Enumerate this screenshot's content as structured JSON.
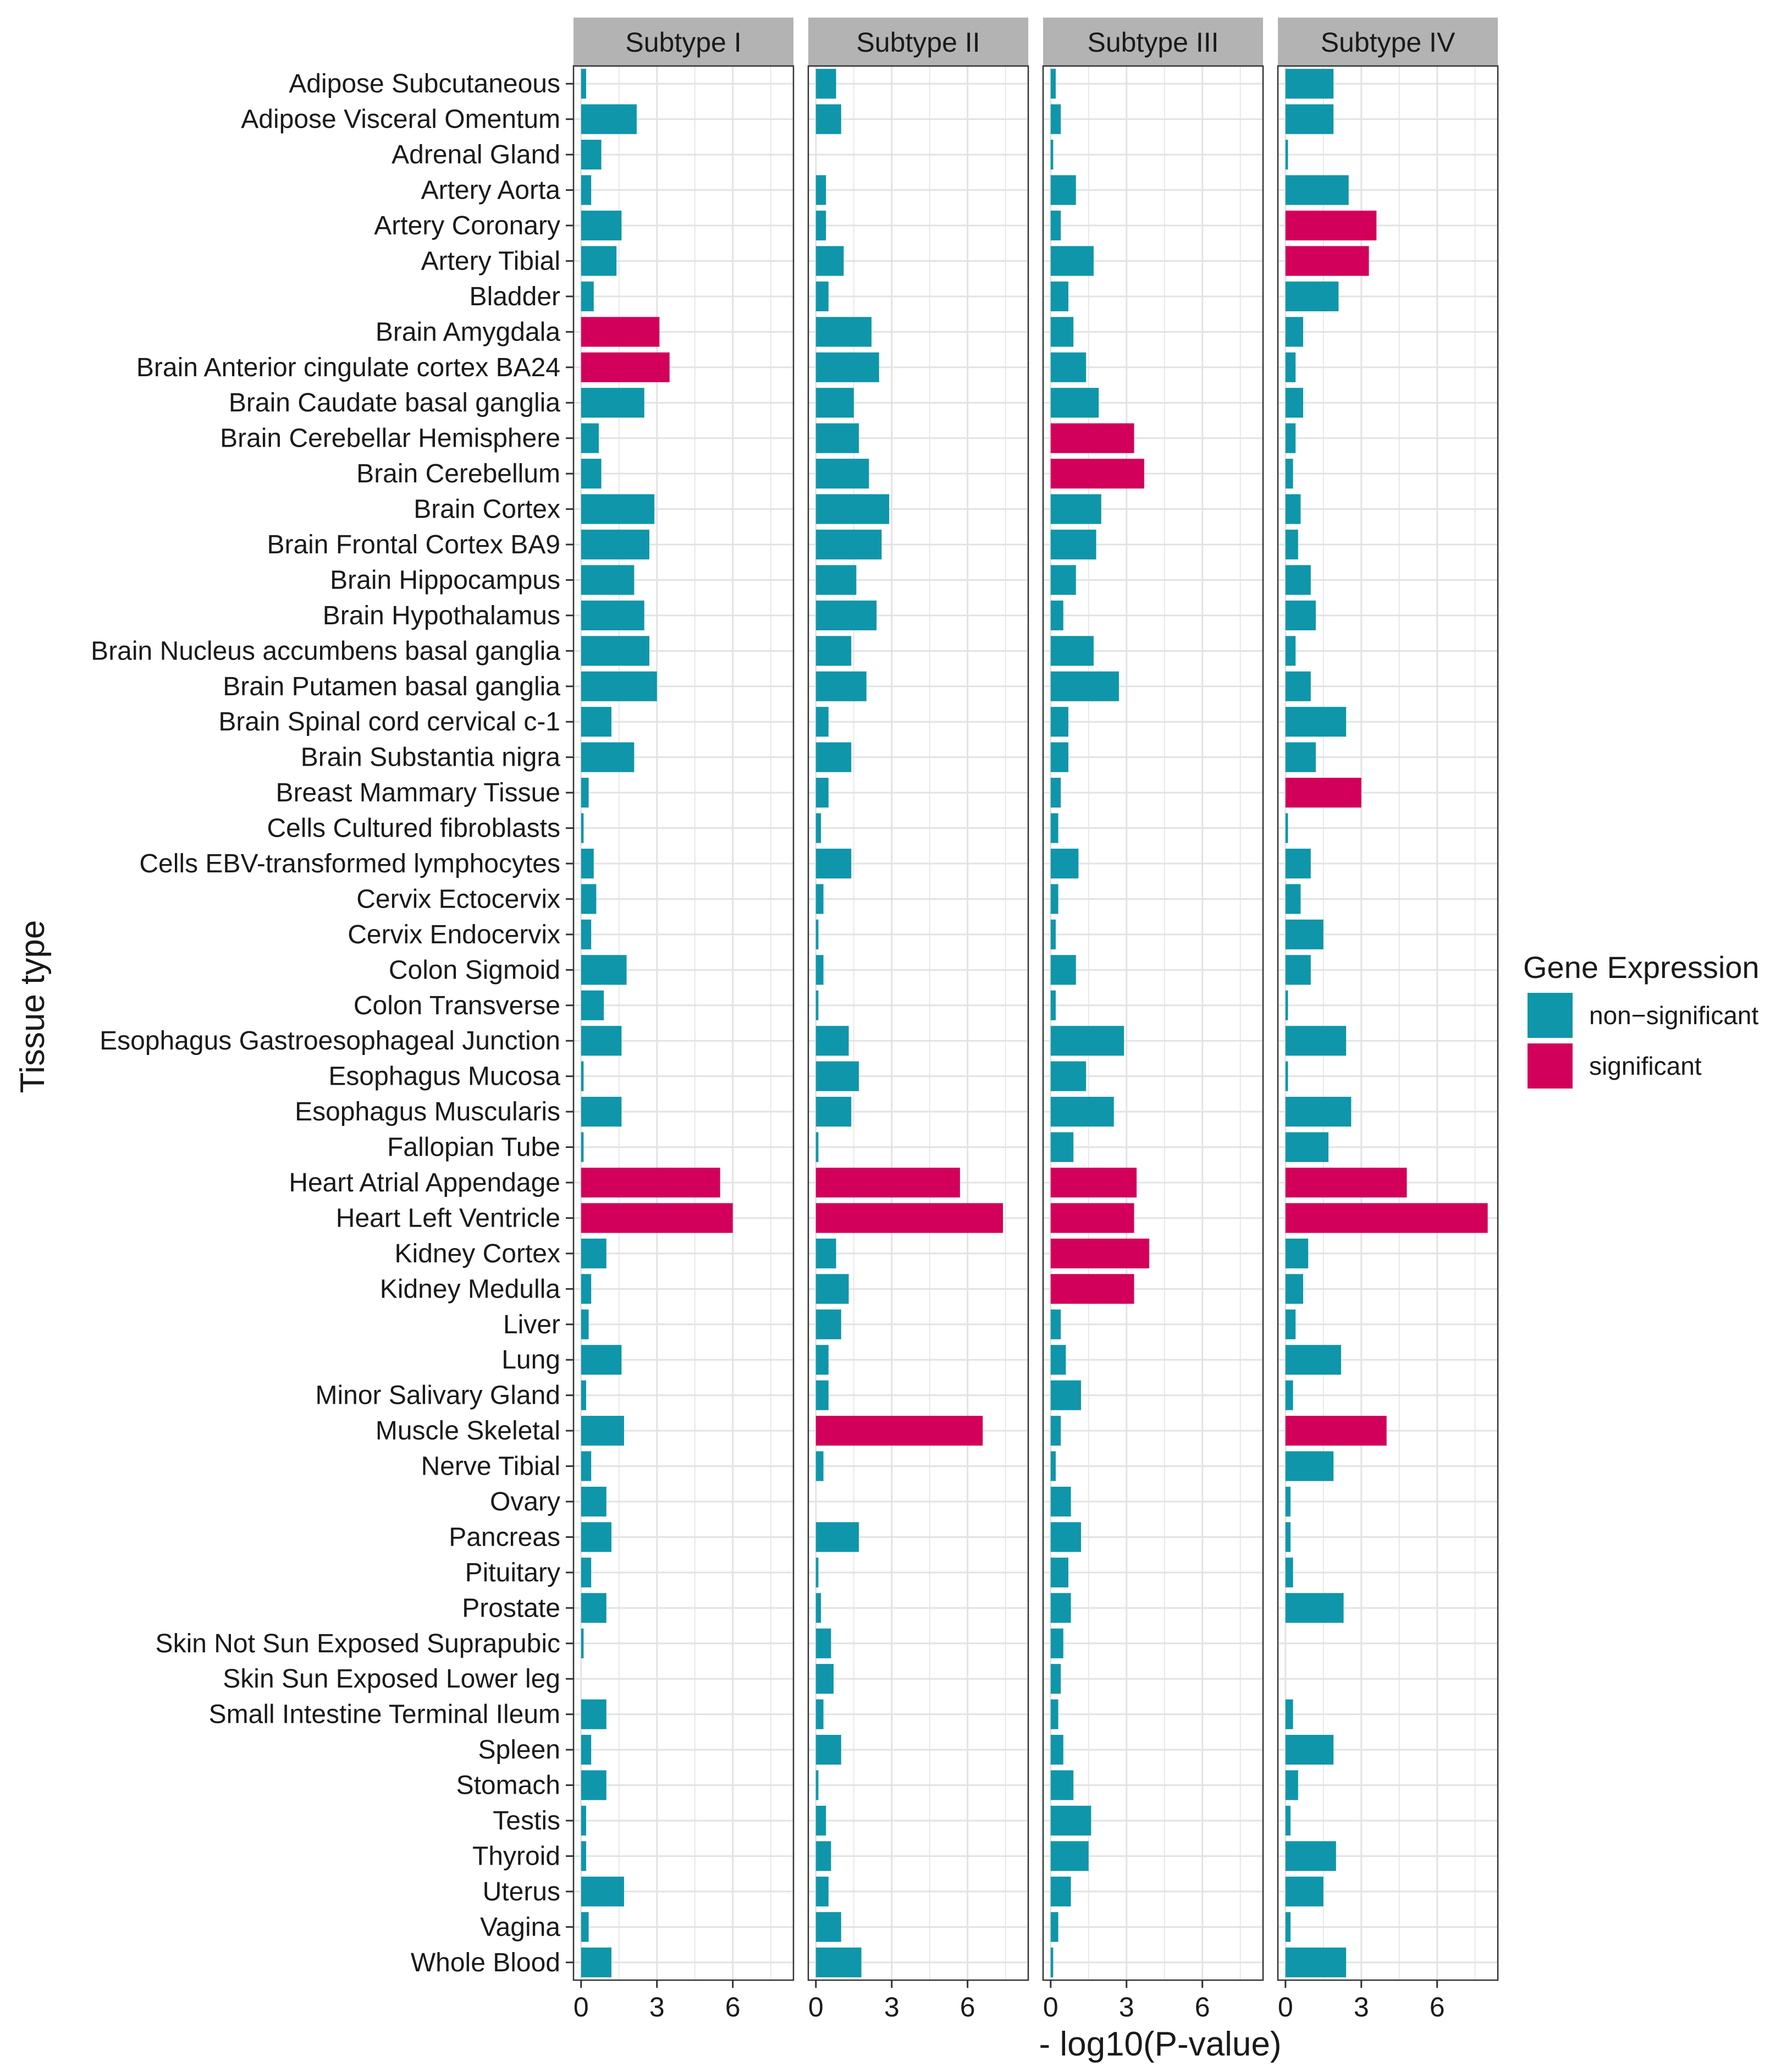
{
  "chart_data": {
    "type": "bar",
    "orientation": "horizontal",
    "xlabel": "- log10(P-value)",
    "ylabel": "Tissue type",
    "xlim": [
      -0.3,
      8.4
    ],
    "xticks": [
      0,
      3,
      6
    ],
    "grid": true,
    "legend": {
      "title": "Gene Expression",
      "position": "right",
      "entries": [
        {
          "key": "non-significant",
          "label": "non−significant",
          "color": "#0f96aa"
        },
        {
          "key": "significant",
          "label": "significant",
          "color": "#d2005a"
        }
      ]
    },
    "categories": [
      "Adipose Subcutaneous",
      "Adipose Visceral Omentum",
      "Adrenal Gland",
      "Artery Aorta",
      "Artery Coronary",
      "Artery Tibial",
      "Bladder",
      "Brain Amygdala",
      "Brain Anterior cingulate cortex BA24",
      "Brain Caudate basal ganglia",
      "Brain Cerebellar Hemisphere",
      "Brain Cerebellum",
      "Brain Cortex",
      "Brain Frontal Cortex BA9",
      "Brain Hippocampus",
      "Brain Hypothalamus",
      "Brain Nucleus accumbens basal ganglia",
      "Brain Putamen basal ganglia",
      "Brain Spinal cord cervical c-1",
      "Brain Substantia nigra",
      "Breast Mammary Tissue",
      "Cells Cultured fibroblasts",
      "Cells EBV-transformed lymphocytes",
      "Cervix Ectocervix",
      "Cervix Endocervix",
      "Colon Sigmoid",
      "Colon Transverse",
      "Esophagus Gastroesophageal Junction",
      "Esophagus Mucosa",
      "Esophagus Muscularis",
      "Fallopian Tube",
      "Heart Atrial Appendage",
      "Heart Left Ventricle",
      "Kidney Cortex",
      "Kidney Medulla",
      "Liver",
      "Lung",
      "Minor Salivary Gland",
      "Muscle Skeletal",
      "Nerve Tibial",
      "Ovary",
      "Pancreas",
      "Pituitary",
      "Prostate",
      "Skin Not Sun Exposed Suprapubic",
      "Skin Sun Exposed Lower leg",
      "Small Intestine Terminal Ileum",
      "Spleen",
      "Stomach",
      "Testis",
      "Thyroid",
      "Uterus",
      "Vagina",
      "Whole Blood"
    ],
    "series": [
      {
        "name": "Subtype I",
        "values": [
          0.2,
          2.2,
          0.8,
          0.4,
          1.6,
          1.4,
          0.5,
          3.1,
          3.5,
          2.5,
          0.7,
          0.8,
          2.9,
          2.7,
          2.1,
          2.5,
          2.7,
          3.0,
          1.2,
          2.1,
          0.3,
          0.1,
          0.5,
          0.6,
          0.4,
          1.8,
          0.9,
          1.6,
          0.1,
          1.6,
          0.1,
          5.5,
          6.0,
          1.0,
          0.4,
          0.3,
          1.6,
          0.2,
          1.7,
          0.4,
          1.0,
          1.2,
          0.4,
          1.0,
          0.1,
          0.0,
          1.0,
          0.4,
          1.0,
          0.2,
          0.2,
          1.7,
          0.3,
          1.2
        ],
        "significant": [
          7,
          8,
          31,
          32
        ]
      },
      {
        "name": "Subtype II",
        "values": [
          0.8,
          1.0,
          0.0,
          0.4,
          0.4,
          1.1,
          0.5,
          2.2,
          2.5,
          1.5,
          1.7,
          2.1,
          2.9,
          2.6,
          1.6,
          2.4,
          1.4,
          2.0,
          0.5,
          1.4,
          0.5,
          0.2,
          1.4,
          0.3,
          0.1,
          0.3,
          0.1,
          1.3,
          1.7,
          1.4,
          0.1,
          5.7,
          7.4,
          0.8,
          1.3,
          1.0,
          0.5,
          0.5,
          6.6,
          0.3,
          0.0,
          1.7,
          0.1,
          0.2,
          0.6,
          0.7,
          0.3,
          1.0,
          0.1,
          0.4,
          0.6,
          0.5,
          1.0,
          1.8
        ],
        "significant": [
          31,
          32,
          38
        ]
      },
      {
        "name": "Subtype III",
        "values": [
          0.2,
          0.4,
          0.1,
          1.0,
          0.4,
          1.7,
          0.7,
          0.9,
          1.4,
          1.9,
          3.3,
          3.7,
          2.0,
          1.8,
          1.0,
          0.5,
          1.7,
          2.7,
          0.7,
          0.7,
          0.4,
          0.3,
          1.1,
          0.3,
          0.2,
          1.0,
          0.2,
          2.9,
          1.4,
          2.5,
          0.9,
          3.4,
          3.3,
          3.9,
          3.3,
          0.4,
          0.6,
          1.2,
          0.4,
          0.2,
          0.8,
          1.2,
          0.7,
          0.8,
          0.5,
          0.4,
          0.3,
          0.5,
          0.9,
          1.6,
          1.5,
          0.8,
          0.3,
          0.1
        ],
        "significant": [
          10,
          11,
          31,
          32,
          33,
          34
        ]
      },
      {
        "name": "Subtype IV",
        "values": [
          1.9,
          1.9,
          0.1,
          2.5,
          3.6,
          3.3,
          2.1,
          0.7,
          0.4,
          0.7,
          0.4,
          0.3,
          0.6,
          0.5,
          1.0,
          1.2,
          0.4,
          1.0,
          2.4,
          1.2,
          3.0,
          0.1,
          1.0,
          0.6,
          1.5,
          1.0,
          0.1,
          2.4,
          0.1,
          2.6,
          1.7,
          4.8,
          8.0,
          0.9,
          0.7,
          0.4,
          2.2,
          0.3,
          4.0,
          1.9,
          0.2,
          0.2,
          0.3,
          2.3,
          0.0,
          0.0,
          0.3,
          1.9,
          0.5,
          0.2,
          2.0,
          1.5,
          0.2,
          2.4
        ],
        "significant": [
          4,
          5,
          20,
          31,
          32,
          38
        ]
      }
    ]
  }
}
